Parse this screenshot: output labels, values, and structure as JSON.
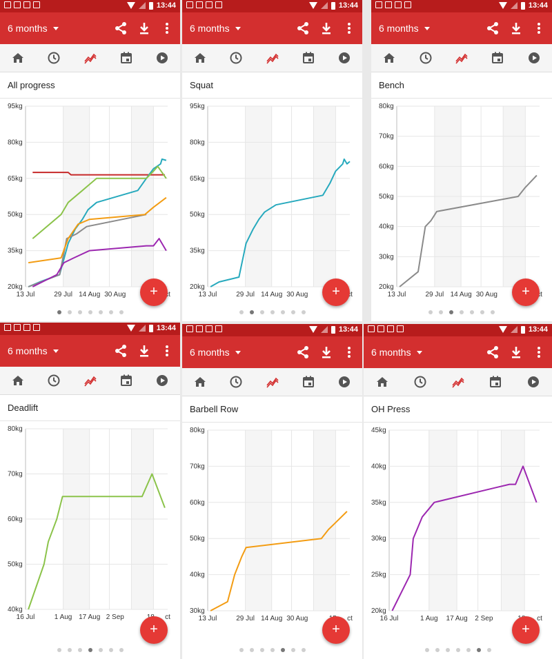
{
  "status_bar": {
    "time": "13:44"
  },
  "toolbar": {
    "period": "6 months",
    "action_icons": [
      "share-icon",
      "download-icon",
      "more-vert-icon"
    ]
  },
  "tabs": [
    "home-icon",
    "clock-icon",
    "progress-icon",
    "calendar-icon",
    "play-icon"
  ],
  "accent_color": "#d32f2f",
  "panels": [
    {
      "title": "All progress",
      "page_index": 0,
      "chart_data": {
        "type": "line",
        "y_ticks": [
          "20kg",
          "35kg",
          "50kg",
          "65kg",
          "80kg",
          "95kg"
        ],
        "ylim": [
          20,
          95
        ],
        "x_ticks": [
          "13 Jul",
          "29 Jul",
          "14 Aug",
          "30 Aug",
          "15",
          "ct"
        ],
        "series": [
          {
            "color": "#c62828",
            "values": [
              [
                0.05,
                67.5
              ],
              [
                0.3,
                67.5
              ],
              [
                0.32,
                66.5
              ],
              [
                0.98,
                66.5
              ]
            ]
          },
          {
            "color": "#26a9bd",
            "values": [
              [
                0.02,
                20
              ],
              [
                0.1,
                22
              ],
              [
                0.24,
                25
              ],
              [
                0.3,
                38
              ],
              [
                0.35,
                44
              ],
              [
                0.4,
                48
              ],
              [
                0.44,
                52
              ],
              [
                0.5,
                55
              ],
              [
                0.79,
                60
              ],
              [
                0.85,
                65
              ],
              [
                0.9,
                69
              ],
              [
                0.95,
                71
              ],
              [
                0.96,
                73
              ],
              [
                0.99,
                72.5
              ]
            ]
          },
          {
            "color": "#8bc34a",
            "values": [
              [
                0.05,
                40
              ],
              [
                0.25,
                50
              ],
              [
                0.3,
                55
              ],
              [
                0.4,
                60
              ],
              [
                0.5,
                65
              ],
              [
                0.85,
                65
              ],
              [
                0.9,
                68
              ],
              [
                0.93,
                70
              ],
              [
                0.99,
                65
              ]
            ]
          },
          {
            "color": "#8a8a8a",
            "values": [
              [
                0.02,
                20
              ],
              [
                0.24,
                25
              ],
              [
                0.29,
                40
              ],
              [
                0.36,
                42
              ],
              [
                0.43,
                45
              ],
              [
                0.85,
                50
              ]
            ]
          },
          {
            "color": "#f39c12",
            "values": [
              [
                0.02,
                30
              ],
              [
                0.25,
                32
              ],
              [
                0.3,
                40
              ],
              [
                0.37,
                46
              ],
              [
                0.45,
                48
              ],
              [
                0.84,
                50
              ],
              [
                0.9,
                53
              ],
              [
                0.99,
                57
              ]
            ]
          },
          {
            "color": "#9c27b0",
            "values": [
              [
                0.05,
                20
              ],
              [
                0.22,
                25
              ],
              [
                0.27,
                30
              ],
              [
                0.34,
                32
              ],
              [
                0.45,
                35
              ],
              [
                0.85,
                37
              ],
              [
                0.9,
                37
              ],
              [
                0.94,
                40
              ],
              [
                0.99,
                35
              ]
            ]
          }
        ]
      }
    },
    {
      "title": "Squat",
      "page_index": 1,
      "chart_data": {
        "type": "line",
        "y_ticks": [
          "20kg",
          "35kg",
          "50kg",
          "65kg",
          "80kg",
          "95kg"
        ],
        "ylim": [
          20,
          95
        ],
        "x_ticks": [
          "13 Jul",
          "29 Jul",
          "14 Aug",
          "30 Aug",
          "15",
          "ct"
        ],
        "series": [
          {
            "color": "#26a9bd",
            "values": [
              [
                0.02,
                20
              ],
              [
                0.08,
                22
              ],
              [
                0.22,
                24
              ],
              [
                0.27,
                38
              ],
              [
                0.32,
                44
              ],
              [
                0.36,
                48
              ],
              [
                0.4,
                51
              ],
              [
                0.48,
                54
              ],
              [
                0.81,
                58
              ],
              [
                0.86,
                63
              ],
              [
                0.9,
                68
              ],
              [
                0.95,
                71
              ],
              [
                0.96,
                73
              ],
              [
                0.98,
                71
              ],
              [
                1.0,
                72
              ]
            ]
          }
        ]
      }
    },
    {
      "title": "Bench",
      "page_index": 2,
      "chart_data": {
        "type": "line",
        "y_ticks": [
          "20kg",
          "30kg",
          "40kg",
          "50kg",
          "60kg",
          "70kg",
          "80kg"
        ],
        "ylim": [
          20,
          80
        ],
        "x_ticks": [
          "13 Jul",
          "29 Jul",
          "14 Aug",
          "30 Aug",
          "15",
          "ct"
        ],
        "series": [
          {
            "color": "#8a8a8a",
            "values": [
              [
                0.02,
                20
              ],
              [
                0.15,
                25
              ],
              [
                0.2,
                40
              ],
              [
                0.24,
                42
              ],
              [
                0.28,
                45
              ],
              [
                0.85,
                50
              ],
              [
                0.9,
                53
              ],
              [
                0.98,
                57
              ]
            ]
          }
        ]
      }
    },
    {
      "title": "Deadlift",
      "page_index": 3,
      "chart_data": {
        "type": "line",
        "y_ticks": [
          "40kg",
          "50kg",
          "60kg",
          "70kg",
          "80kg"
        ],
        "ylim": [
          40,
          80
        ],
        "x_ticks": [
          "16 Jul",
          "1 Aug",
          "17 Aug",
          "2 Sep",
          "18",
          "ct"
        ],
        "series": [
          {
            "color": "#8bc34a",
            "values": [
              [
                0.02,
                40
              ],
              [
                0.13,
                50
              ],
              [
                0.16,
                55
              ],
              [
                0.22,
                60
              ],
              [
                0.26,
                65
              ],
              [
                0.82,
                65
              ],
              [
                0.89,
                70
              ],
              [
                0.98,
                62.5
              ]
            ]
          }
        ]
      }
    },
    {
      "title": "Barbell Row",
      "page_index": 4,
      "chart_data": {
        "type": "line",
        "y_ticks": [
          "30kg",
          "40kg",
          "50kg",
          "60kg",
          "70kg",
          "80kg"
        ],
        "ylim": [
          30,
          80
        ],
        "x_ticks": [
          "13 Jul",
          "29 Jul",
          "14 Aug",
          "30 Aug",
          "15",
          "ct"
        ],
        "series": [
          {
            "color": "#f39c12",
            "values": [
              [
                0.02,
                30
              ],
              [
                0.14,
                32.5
              ],
              [
                0.19,
                40
              ],
              [
                0.24,
                45
              ],
              [
                0.27,
                47.5
              ],
              [
                0.8,
                50
              ],
              [
                0.85,
                52.5
              ],
              [
                0.89,
                54
              ],
              [
                0.98,
                57.5
              ]
            ]
          }
        ]
      }
    },
    {
      "title": "OH Press",
      "page_index": 5,
      "chart_data": {
        "type": "line",
        "y_ticks": [
          "20kg",
          "25kg",
          "30kg",
          "35kg",
          "40kg",
          "45kg"
        ],
        "ylim": [
          20,
          45
        ],
        "x_ticks": [
          "16 Jul",
          "1 Aug",
          "17 Aug",
          "2 Sep",
          "18",
          "ct"
        ],
        "series": [
          {
            "color": "#9c27b0",
            "values": [
              [
                0.02,
                20
              ],
              [
                0.14,
                25
              ],
              [
                0.16,
                30
              ],
              [
                0.22,
                33
              ],
              [
                0.3,
                35
              ],
              [
                0.7,
                37
              ],
              [
                0.8,
                37.5
              ],
              [
                0.84,
                37.5
              ],
              [
                0.89,
                40
              ],
              [
                0.98,
                35
              ]
            ]
          }
        ]
      }
    }
  ]
}
